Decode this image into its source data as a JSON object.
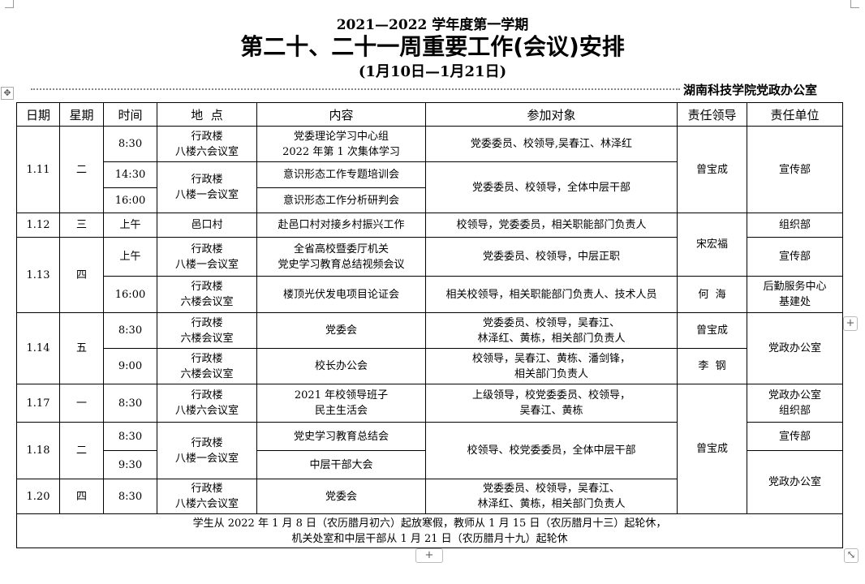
{
  "header": {
    "term": "2021—2022 学年度第一学期",
    "title": "第二十、二十一周重要工作(会议)安排",
    "range": "(1月10日—1月21日)",
    "office": "湖南科技学院党政办公室"
  },
  "columns": [
    "日期",
    "星期",
    "时间",
    "地  点",
    "内容",
    "参加对象",
    "责任领导",
    "责任单位"
  ],
  "rows": {
    "r1": {
      "date": "1.11",
      "day": "二",
      "time": "8:30",
      "place": [
        "行政楼",
        "八楼六会议室"
      ],
      "content": [
        "党委理论学习中心组",
        "2022 年第 1 次集体学习"
      ],
      "attendees": "党委委员、校领导,吴春江、林泽红",
      "leader": "曾宝成",
      "unit": "宣传部"
    },
    "r2": {
      "time": "14:30",
      "place": [
        "行政楼",
        "八楼一会议室"
      ],
      "content": "意识形态工作专题培训会",
      "attendees": "党委委员、校领导，全体中层干部"
    },
    "r3": {
      "time": "16:00",
      "content": "意识形态工作分析研判会"
    },
    "r4": {
      "date": "1.12",
      "day": "三",
      "time": "上午",
      "place": "邑口村",
      "content": "赴邑口村对接乡村振兴工作",
      "attendees": "校领导，党委委员，相关职能部门负责人",
      "leader": "宋宏福",
      "unit": "组织部"
    },
    "r5": {
      "date": "1.13",
      "day": "四",
      "time": "上午",
      "place": [
        "行政楼",
        "八楼一会议室"
      ],
      "content": [
        "全省高校暨委厅机关",
        "党史学习教育总结视频会议"
      ],
      "attendees": "党委委员、校领导，中层正职",
      "unit": "宣传部"
    },
    "r6": {
      "time": "16:00",
      "place": [
        "行政楼",
        "六楼会议室"
      ],
      "content": "楼顶光伏发电项目论证会",
      "attendees": "相关校领导，相关职能部门负责人、技术人员",
      "leader": "何  海",
      "unit": [
        "后勤服务中心",
        "基建处"
      ]
    },
    "r7": {
      "date": "1.14",
      "day": "五",
      "time": "8:30",
      "place": [
        "行政楼",
        "六楼会议室"
      ],
      "content": "党委会",
      "attendees": [
        "党委委员、校领导，吴春江、",
        "林泽红、黄栋，相关部门负责人"
      ],
      "leader": "曾宝成",
      "unit": "党政办公室"
    },
    "r8": {
      "time": "9:00",
      "place": [
        "行政楼",
        "六楼会议室"
      ],
      "content": "校长办公会",
      "attendees": [
        "校领导，吴春江、黄栋、潘剑锋，",
        "相关部门负责人"
      ],
      "leader": "李  钢"
    },
    "r9": {
      "date": "1.17",
      "day": "一",
      "time": "8:30",
      "place": [
        "行政楼",
        "八楼六会议室"
      ],
      "content": [
        "2021 年校领导班子",
        "民主生活会"
      ],
      "attendees": [
        "上级领导，校党委委员、校领导，",
        "吴春江、黄栋"
      ],
      "leader": "曾宝成",
      "unit": [
        "党政办公室",
        "组织部"
      ]
    },
    "r10": {
      "date": "1.18",
      "day": "二",
      "time": "8:30",
      "place": [
        "行政楼",
        "八楼一会议室"
      ],
      "content": "党史学习教育总结会",
      "attendees": "校领导、校党委委员，全体中层干部",
      "unit": "宣传部"
    },
    "r11": {
      "time": "9:30",
      "content": "中层干部大会",
      "unit": "党政办公室"
    },
    "r12": {
      "date": "1.20",
      "day": "四",
      "time": "8:30",
      "place": [
        "行政楼",
        "八楼六会议室"
      ],
      "content": "党委会",
      "attendees": [
        "党委委员、校领导，吴春江、",
        "林泽红、黄栋，相关部门负责人"
      ]
    }
  },
  "footer": [
    "学生从 2022 年 1 月 8 日（农历腊月初六）起放寒假，教师从 1 月 15 日（农历腊月十三）起轮休，",
    "机关处室和中层干部从 1 月 21 日（农历腊月十九）起轮休"
  ]
}
